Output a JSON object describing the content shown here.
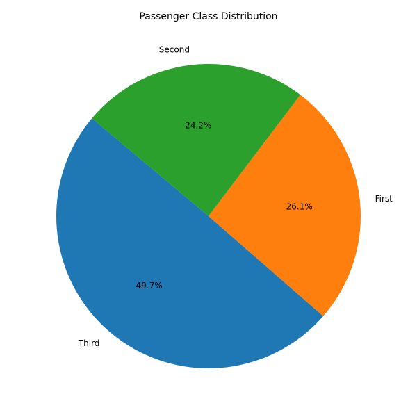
{
  "chart_data": {
    "type": "pie",
    "title": "Passenger Class Distribution",
    "labels": [
      "Third",
      "First",
      "Second"
    ],
    "values": [
      49.7,
      26.1,
      24.2
    ],
    "percent_labels": [
      "49.7%",
      "26.1%",
      "24.2%"
    ],
    "colors": [
      "#1f77b4",
      "#ff7f0e",
      "#2ca02c"
    ],
    "start_angle_deg": 140,
    "direction": "counterclockwise",
    "legend": "none"
  }
}
